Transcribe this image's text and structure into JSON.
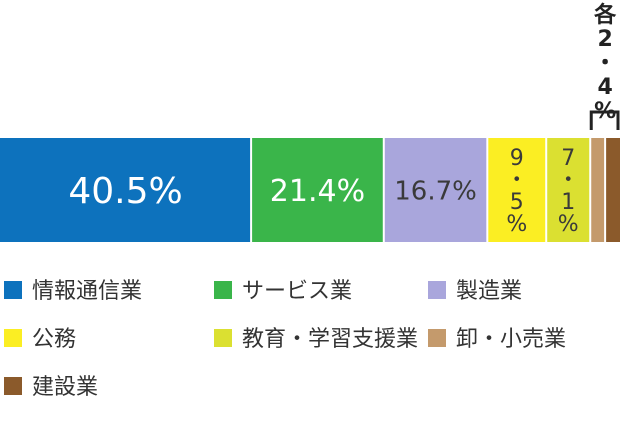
{
  "chart_data": {
    "type": "bar",
    "orientation": "horizontal-stacked-100",
    "unit": "%",
    "categories": [
      "情報通信業",
      "サービス業",
      "製造業",
      "公務",
      "教育・学習支援業",
      "卸・小売業",
      "建設業"
    ],
    "values": [
      40.5,
      21.4,
      16.7,
      9.5,
      7.1,
      2.4,
      2.4
    ],
    "data_labels": [
      "40.5%",
      "21.4%",
      "16.7%",
      "9・5%",
      "7・1%",
      "",
      ""
    ],
    "shared_label": "各2・4%",
    "colors": [
      "#0d72bd",
      "#3ab54a",
      "#a9a6dc",
      "#fbee23",
      "#dbe031",
      "#c49a6c",
      "#8b5a2b"
    ],
    "label_colors": [
      "#ffffff",
      "#ffffff",
      "#3a3a3a",
      "#3a3a3a",
      "#3a3a3a",
      "#3a3a3a",
      "#3a3a3a"
    ],
    "legend": [
      "情報通信業",
      "サービス業",
      "製造業",
      "公務",
      "教育・学習支援業",
      "卸・小売業",
      "建設業"
    ],
    "legend_placement": "bottom",
    "grid": false
  }
}
